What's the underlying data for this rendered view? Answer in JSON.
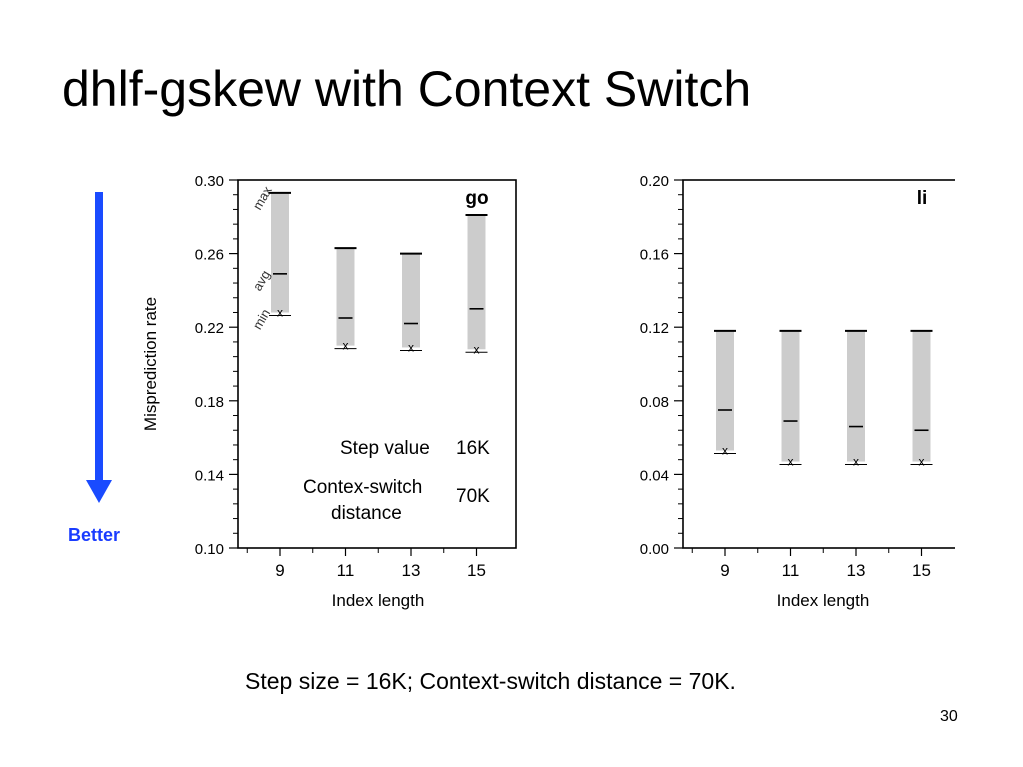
{
  "slide": {
    "title": "dhlf-gskew with Context Switch",
    "better_label": "Better",
    "caption": "Step size = 16K; Context-switch distance = 70K.",
    "page_number": "30",
    "arrow_color": "#1a4bff"
  },
  "chart_data": [
    {
      "type": "range",
      "title": "go",
      "xlabel": "Index length",
      "ylabel": "Misprediction rate",
      "categories": [
        "9",
        "11",
        "13",
        "15"
      ],
      "ylim": [
        0.1,
        0.3
      ],
      "yticks": [
        "0.10",
        "0.14",
        "0.18",
        "0.22",
        "0.26",
        "0.30"
      ],
      "series": [
        {
          "name": "max",
          "values": [
            0.293,
            0.263,
            0.26,
            0.281
          ]
        },
        {
          "name": "avg",
          "values": [
            0.249,
            0.225,
            0.222,
            0.23
          ]
        },
        {
          "name": "min",
          "values": [
            0.228,
            0.21,
            0.209,
            0.208
          ]
        }
      ],
      "range_labels": [
        "max",
        "avg",
        "min"
      ],
      "annotations": {
        "step_label": "Step value",
        "step_value": "16K",
        "switch_label_1": "Contex-switch",
        "switch_label_2": "distance",
        "switch_value": "70K"
      }
    },
    {
      "type": "range",
      "title": "li",
      "xlabel": "Index length",
      "ylabel": "",
      "categories": [
        "9",
        "11",
        "13",
        "15"
      ],
      "ylim": [
        0.0,
        0.2
      ],
      "yticks": [
        "0.00",
        "0.04",
        "0.08",
        "0.12",
        "0.16",
        "0.20"
      ],
      "series": [
        {
          "name": "max",
          "values": [
            0.118,
            0.118,
            0.118,
            0.118
          ]
        },
        {
          "name": "avg",
          "values": [
            0.075,
            0.069,
            0.066,
            0.064
          ]
        },
        {
          "name": "min",
          "values": [
            0.053,
            0.047,
            0.047,
            0.047
          ]
        }
      ]
    }
  ]
}
